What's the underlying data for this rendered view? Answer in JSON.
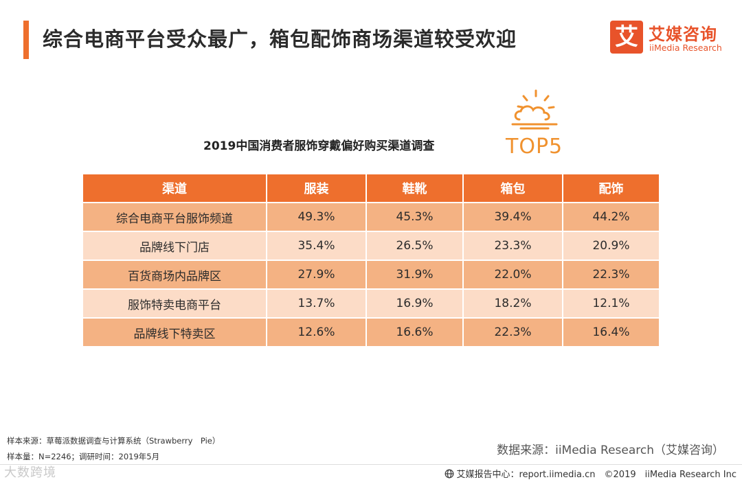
{
  "header": {
    "title": "综合电商平台受众最广，箱包配饰商场渠道较受欢迎",
    "accent_color": "#ee6f2d"
  },
  "logo": {
    "glyph": "艾",
    "name_cn": "艾媒咨询",
    "name_en": "iiMedia Research"
  },
  "badge": {
    "icon": "sun-cloud-icon",
    "label": "TOP5"
  },
  "survey": {
    "title": "2019中国消费者服饰穿戴偏好购买渠道调查"
  },
  "table": {
    "headers": [
      "渠道",
      "服装",
      "鞋靴",
      "箱包",
      "配饰"
    ],
    "rows": [
      [
        "综合电商平台服饰频道",
        "49.3%",
        "45.3%",
        "39.4%",
        "44.2%"
      ],
      [
        "品牌线下门店",
        "35.4%",
        "26.5%",
        "23.3%",
        "20.9%"
      ],
      [
        "百货商场内品牌区",
        "27.9%",
        "31.9%",
        "22.0%",
        "22.3%"
      ],
      [
        "服饰特卖电商平台",
        "13.7%",
        "16.9%",
        "18.2%",
        "12.1%"
      ],
      [
        "品牌线下特卖区",
        "12.6%",
        "16.6%",
        "22.3%",
        "16.4%"
      ]
    ],
    "header_color": "#ee6f2d",
    "row_color_a": "#f4b283",
    "row_color_b": "#fcdcc7"
  },
  "footer": {
    "sample_source": "样本来源：草莓派数据调查与计算系统（Strawberry　Pie）",
    "sample_info": "样本量：N=2246；调研时间：2019年5月",
    "data_source": "数据来源：iiMedia Research（艾媒咨询）",
    "watermark": "大数跨境",
    "report_center": "艾媒报告中心：report.iimedia.cn　©2019　iiMedia Research Inc"
  }
}
